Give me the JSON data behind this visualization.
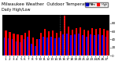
{
  "title": "Milwaukee Weather  Outdoor Temperature",
  "subtitle": "Daily High/Low",
  "background_color": "#ffffff",
  "plot_bg_color": "#000000",
  "bar_width": 0.45,
  "legend_labels": [
    "High",
    "Low"
  ],
  "legend_colors": [
    "#ff0000",
    "#0000ff"
  ],
  "yticks": [
    0,
    20,
    40,
    60,
    80
  ],
  "ylim": [
    0,
    100
  ],
  "dotted_lines": [
    14,
    15
  ],
  "days": [
    1,
    2,
    3,
    4,
    5,
    6,
    7,
    8,
    9,
    10,
    11,
    12,
    13,
    14,
    15,
    16,
    17,
    18,
    19,
    20,
    21,
    22,
    23,
    24,
    25,
    26,
    27
  ],
  "highs": [
    62,
    58,
    55,
    52,
    50,
    57,
    62,
    44,
    40,
    57,
    65,
    60,
    62,
    57,
    60,
    98,
    72,
    64,
    67,
    70,
    64,
    62,
    67,
    65,
    68,
    65,
    62
  ],
  "lows": [
    45,
    42,
    40,
    36,
    33,
    40,
    47,
    30,
    24,
    40,
    47,
    44,
    47,
    42,
    44,
    52,
    54,
    50,
    52,
    54,
    50,
    46,
    52,
    50,
    52,
    50,
    47
  ],
  "high_color": "#ff0000",
  "low_color": "#0000ff",
  "tick_fontsize": 3.0,
  "title_fontsize": 4.0
}
